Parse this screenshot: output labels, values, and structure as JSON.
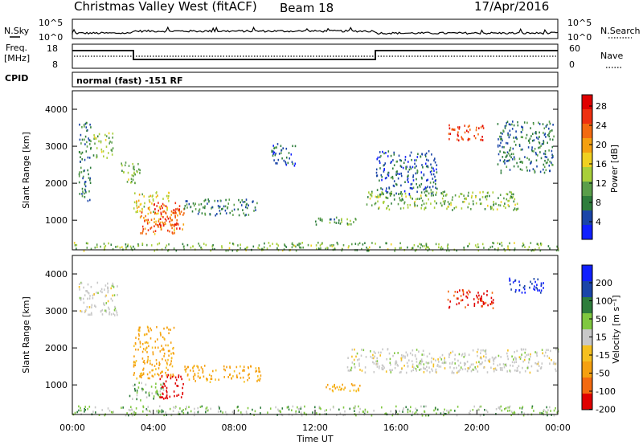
{
  "header": {
    "station": "Christmas Valley West (fitACF)",
    "beam": "Beam 18",
    "date": "17/Apr/2016"
  },
  "strip_panels": {
    "nsky": {
      "label": "N.Sky",
      "tick_top": "10^5",
      "tick_bottom": "10^0"
    },
    "nsearch": {
      "label": "N.Search",
      "tick_top": "10^5",
      "tick_bottom": "10^0"
    },
    "freq": {
      "label_line1": "Freq.",
      "label_line2": "[MHz]",
      "tick_top": "18",
      "tick_bottom": "8"
    },
    "nave": {
      "label": "Nave",
      "tick_top": "60",
      "tick_bottom": "0"
    },
    "cpid": {
      "label": "CPID",
      "value": "normal (fast) -151 RF"
    }
  },
  "chart_data": [
    {
      "type": "heatmap",
      "name": "power",
      "ylabel": "Slant Range [km]",
      "xlabel": "",
      "ylim": [
        200,
        4500
      ],
      "yticks": [
        "1000",
        "2000",
        "3000",
        "4000"
      ],
      "colorbar": {
        "label": "Power [dB]",
        "ticks": [
          "4",
          "8",
          "12",
          "16",
          "20",
          "24",
          "28"
        ],
        "colors": [
          "#1020ff",
          "#1a45a8",
          "#2e7d3c",
          "#5a9e4a",
          "#a8cf3a",
          "#f0d020",
          "#f5a010",
          "#f36a10",
          "#ee3010",
          "#e00000"
        ]
      },
      "regions": [
        {
          "t0": 0.3,
          "t1": 0.9,
          "r0": 1550,
          "r1": 3800,
          "level": 8
        },
        {
          "t0": 1.0,
          "t1": 2.0,
          "r0": 2700,
          "r1": 3400,
          "level": 12
        },
        {
          "t0": 2.4,
          "t1": 3.4,
          "r0": 2000,
          "r1": 2600,
          "level": 12
        },
        {
          "t0": 3.0,
          "t1": 4.8,
          "r0": 1200,
          "r1": 1800,
          "level": 16
        },
        {
          "t0": 3.3,
          "t1": 5.5,
          "r0": 650,
          "r1": 1350,
          "level": 22
        },
        {
          "t0": 4.0,
          "t1": 5.3,
          "r0": 800,
          "r1": 1500,
          "level": 26
        },
        {
          "t0": 5.5,
          "t1": 9.2,
          "r0": 1150,
          "r1": 1600,
          "level": 8
        },
        {
          "t0": 9.8,
          "t1": 11.0,
          "r0": 2500,
          "r1": 3100,
          "level": 6
        },
        {
          "t0": 12.0,
          "t1": 14.0,
          "r0": 900,
          "r1": 1100,
          "level": 10
        },
        {
          "t0": 14.5,
          "t1": 22.0,
          "r0": 1300,
          "r1": 1800,
          "level": 12
        },
        {
          "t0": 15.0,
          "t1": 18.0,
          "r0": 1700,
          "r1": 2900,
          "level": 6
        },
        {
          "t0": 18.5,
          "t1": 20.3,
          "r0": 3150,
          "r1": 3600,
          "level": 26
        },
        {
          "t0": 21.0,
          "t1": 23.8,
          "r0": 2300,
          "r1": 3700,
          "level": 8
        },
        {
          "t0": 0.0,
          "t1": 24.0,
          "r0": 200,
          "r1": 420,
          "level": 12
        }
      ]
    },
    {
      "type": "heatmap",
      "name": "velocity",
      "ylabel": "Slant Range [km]",
      "xlabel": "Time UT",
      "ylim": [
        200,
        4500
      ],
      "xlim": [
        0,
        24
      ],
      "xticks": [
        "00:00",
        "04:00",
        "08:00",
        "12:00",
        "16:00",
        "20:00",
        "00:00"
      ],
      "yticks": [
        "1000",
        "2000",
        "3000",
        "4000"
      ],
      "colorbar": {
        "label": "Velocity [m s⁻¹]",
        "ticks": [
          "200",
          "100",
          "50",
          "15",
          "-15",
          "-50",
          "-100",
          "-200"
        ],
        "colors": [
          "#1020ff",
          "#1a45a8",
          "#2e7d3c",
          "#80c840",
          "#c8c8c8",
          "#f5c020",
          "#f5a010",
          "#f36a10",
          "#e00000"
        ]
      },
      "regions": [
        {
          "t0": 0.3,
          "t1": 2.2,
          "r0": 2900,
          "r1": 3800,
          "v": 0
        },
        {
          "t0": 3.0,
          "t1": 5.0,
          "r0": 1200,
          "r1": 2600,
          "v": -60
        },
        {
          "t0": 2.8,
          "t1": 4.5,
          "r0": 600,
          "r1": 1100,
          "v": 20
        },
        {
          "t0": 4.3,
          "t1": 5.5,
          "r0": 650,
          "r1": 1300,
          "v": -180
        },
        {
          "t0": 5.5,
          "t1": 9.3,
          "r0": 1100,
          "r1": 1550,
          "v": -60
        },
        {
          "t0": 12.5,
          "t1": 14.2,
          "r0": 850,
          "r1": 1050,
          "v": -50
        },
        {
          "t0": 13.5,
          "t1": 24.0,
          "r0": 1350,
          "r1": 2000,
          "v": 0
        },
        {
          "t0": 18.5,
          "t1": 20.8,
          "r0": 3100,
          "r1": 3600,
          "v": -160
        },
        {
          "t0": 21.5,
          "t1": 23.3,
          "r0": 3500,
          "r1": 3900,
          "v": 150
        },
        {
          "t0": 0.0,
          "t1": 24.0,
          "r0": 200,
          "r1": 450,
          "v": 20
        }
      ]
    }
  ]
}
